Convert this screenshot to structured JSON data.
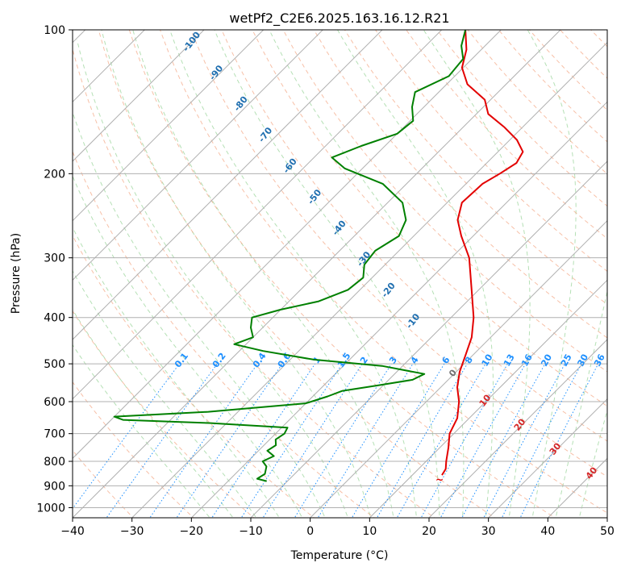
{
  "chart_data": {
    "type": "line",
    "subtype": "skew-t-log-p",
    "title": "wetPf2_C2E6.2025.163.16.12.R21",
    "xlabel": "Temperature (°C)",
    "ylabel": "Pressure (hPa)",
    "xlim": [
      -40,
      50
    ],
    "ylim": [
      1050,
      100
    ],
    "yscale": "log",
    "x_ticks": [
      "−40",
      "−30",
      "−20",
      "−10",
      "0",
      "10",
      "20",
      "30",
      "40",
      "50"
    ],
    "y_ticks": [
      {
        "p": 1000,
        "label": "1000"
      },
      {
        "p": 900,
        "label": "900"
      },
      {
        "p": 800,
        "label": "800"
      },
      {
        "p": 700,
        "label": "700"
      },
      {
        "p": 600,
        "label": "600"
      },
      {
        "p": 500,
        "label": "500"
      },
      {
        "p": 400,
        "label": "400"
      },
      {
        "p": 300,
        "label": "300"
      },
      {
        "p": 200,
        "label": "200"
      },
      {
        "p": 100,
        "label": "100"
      }
    ],
    "isobar_grid": [
      1000,
      900,
      800,
      700,
      600,
      500,
      400,
      300,
      200
    ],
    "grid": true,
    "series": [
      {
        "key": "temperature",
        "color": "#e30000",
        "points": [
          [
            855,
            15.0
          ],
          [
            830,
            14.6
          ],
          [
            800,
            13.4
          ],
          [
            750,
            11.5
          ],
          [
            700,
            9.3
          ],
          [
            650,
            8.0
          ],
          [
            600,
            5.5
          ],
          [
            560,
            2.8
          ],
          [
            520,
            0.6
          ],
          [
            480,
            -1.2
          ],
          [
            440,
            -3.2
          ],
          [
            400,
            -6.2
          ],
          [
            350,
            -11.2
          ],
          [
            300,
            -17.0
          ],
          [
            270,
            -22.0
          ],
          [
            250,
            -25.3
          ],
          [
            230,
            -27.5
          ],
          [
            210,
            -27.2
          ],
          [
            200,
            -26.0
          ],
          [
            190,
            -25.0
          ],
          [
            180,
            -25.8
          ],
          [
            170,
            -28.8
          ],
          [
            160,
            -33.0
          ],
          [
            150,
            -38.0
          ],
          [
            140,
            -41.0
          ],
          [
            130,
            -46.5
          ],
          [
            120,
            -50.2
          ],
          [
            110,
            -52.5
          ],
          [
            100,
            -56.0
          ]
        ]
      },
      {
        "key": "dewpoint",
        "color": "#008000",
        "points": [
          [
            880,
            -13.5
          ],
          [
            870,
            -15.5
          ],
          [
            850,
            -15.0
          ],
          [
            820,
            -16.0
          ],
          [
            800,
            -17.5
          ],
          [
            780,
            -16.5
          ],
          [
            760,
            -18.5
          ],
          [
            740,
            -18.0
          ],
          [
            720,
            -19.0
          ],
          [
            700,
            -18.5
          ],
          [
            680,
            -19.0
          ],
          [
            665,
            -33.0
          ],
          [
            655,
            -48.0
          ],
          [
            645,
            -50.0
          ],
          [
            630,
            -35.0
          ],
          [
            605,
            -20.0
          ],
          [
            585,
            -17.5
          ],
          [
            570,
            -16.0
          ],
          [
            555,
            -11.0
          ],
          [
            540,
            -6.0
          ],
          [
            525,
            -5.0
          ],
          [
            505,
            -13.5
          ],
          [
            490,
            -26.0
          ],
          [
            470,
            -36.0
          ],
          [
            455,
            -42.0
          ],
          [
            440,
            -40.0
          ],
          [
            420,
            -42.0
          ],
          [
            400,
            -43.5
          ],
          [
            385,
            -40.0
          ],
          [
            370,
            -35.0
          ],
          [
            350,
            -32.0
          ],
          [
            330,
            -31.5
          ],
          [
            310,
            -33.5
          ],
          [
            290,
            -34.0
          ],
          [
            270,
            -32.5
          ],
          [
            250,
            -34.0
          ],
          [
            230,
            -37.5
          ],
          [
            210,
            -44.0
          ],
          [
            195,
            -53.0
          ],
          [
            185,
            -57.0
          ],
          [
            175,
            -54.0
          ],
          [
            165,
            -50.0
          ],
          [
            155,
            -49.5
          ],
          [
            145,
            -52.0
          ],
          [
            135,
            -54.0
          ],
          [
            125,
            -51.0
          ],
          [
            115,
            -51.5
          ],
          [
            108,
            -54.0
          ],
          [
            100,
            -56.0
          ]
        ]
      }
    ],
    "dry_adiabat_labels": [
      "-100",
      "-90",
      "-80",
      "-70",
      "-60",
      "-50",
      "-40",
      "-30",
      "-20",
      "-10"
    ],
    "dry_adiabat_label_color": "#1f6fb0",
    "mixing_ratio_labels": [
      "0.1",
      "0.2",
      "0.4",
      "0.6",
      "1",
      "1.5",
      "2",
      "3",
      "4",
      "6",
      "8",
      "10",
      "13",
      "16",
      "20",
      "25",
      "30",
      "36"
    ],
    "mixing_ratio_label_color": "#1e90ff",
    "moist_adiabat_labels": [
      "0",
      "10",
      "20",
      "30",
      "40"
    ],
    "moist_adiabat_label_colors": [
      "#707070",
      "#d62728",
      "#d62728",
      "#d62728",
      "#d62728"
    ],
    "lcl_marker": "~"
  }
}
